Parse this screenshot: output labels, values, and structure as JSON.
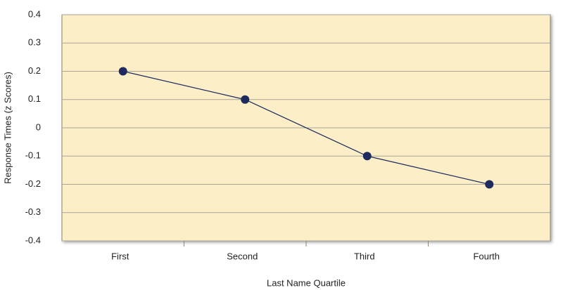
{
  "chart_data": {
    "type": "line",
    "x_label": "Last Name Quartile",
    "y_label": "Response Times (z  Scores)",
    "categories": [
      "First",
      "Second",
      "Third",
      "Fourth"
    ],
    "values": [
      0.2,
      0.1,
      -0.1,
      -0.2
    ],
    "color": "#1f2a5e",
    "ylim": [
      -0.4,
      0.4
    ],
    "yticks": [
      -0.4,
      -0.3,
      -0.2,
      -0.1,
      0,
      0.1,
      0.2,
      0.3,
      0.4
    ],
    "grid": true
  }
}
